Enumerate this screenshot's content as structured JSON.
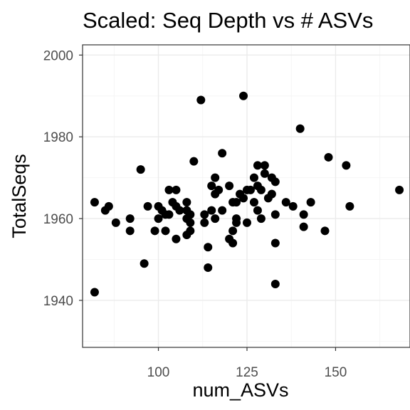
{
  "chart_data": {
    "type": "scatter",
    "title": "Scaled: Seq Depth vs # ASVs",
    "xlabel": "num_ASVs",
    "ylabel": "TotalSeqs",
    "xlim": [
      78.6,
      171.0
    ],
    "ylim": [
      1928.5,
      2002.5
    ],
    "x_ticks": [
      100,
      125,
      150
    ],
    "x_minor_ticks": [
      87.5,
      112.5,
      137.5,
      162.5
    ],
    "y_ticks": [
      1940,
      1960,
      1980,
      2000
    ],
    "y_minor_ticks": [
      1930,
      1950,
      1970,
      1990
    ],
    "grid": true,
    "point_color": "#000000",
    "points": [
      {
        "x": 82,
        "y": 1964
      },
      {
        "x": 82,
        "y": 1942
      },
      {
        "x": 85,
        "y": 1962
      },
      {
        "x": 86,
        "y": 1963
      },
      {
        "x": 88,
        "y": 1959
      },
      {
        "x": 92,
        "y": 1960
      },
      {
        "x": 92,
        "y": 1957
      },
      {
        "x": 95,
        "y": 1972
      },
      {
        "x": 96,
        "y": 1949
      },
      {
        "x": 97,
        "y": 1963
      },
      {
        "x": 99,
        "y": 1957
      },
      {
        "x": 100,
        "y": 1963
      },
      {
        "x": 100,
        "y": 1960
      },
      {
        "x": 101,
        "y": 1962
      },
      {
        "x": 102,
        "y": 1961
      },
      {
        "x": 102,
        "y": 1957
      },
      {
        "x": 103,
        "y": 1967
      },
      {
        "x": 103,
        "y": 1961
      },
      {
        "x": 104,
        "y": 1964
      },
      {
        "x": 105,
        "y": 1967
      },
      {
        "x": 105,
        "y": 1963
      },
      {
        "x": 105,
        "y": 1955
      },
      {
        "x": 106,
        "y": 1962
      },
      {
        "x": 108,
        "y": 1964
      },
      {
        "x": 108,
        "y": 1962
      },
      {
        "x": 108,
        "y": 1960
      },
      {
        "x": 108,
        "y": 1956
      },
      {
        "x": 109,
        "y": 1961
      },
      {
        "x": 109,
        "y": 1959
      },
      {
        "x": 109,
        "y": 1957
      },
      {
        "x": 110,
        "y": 1974
      },
      {
        "x": 112,
        "y": 1989
      },
      {
        "x": 113,
        "y": 1961
      },
      {
        "x": 113,
        "y": 1959
      },
      {
        "x": 114,
        "y": 1953
      },
      {
        "x": 114,
        "y": 1948
      },
      {
        "x": 115,
        "y": 1968
      },
      {
        "x": 115,
        "y": 1962
      },
      {
        "x": 116,
        "y": 1970
      },
      {
        "x": 116,
        "y": 1966
      },
      {
        "x": 116,
        "y": 1960
      },
      {
        "x": 117,
        "y": 1967
      },
      {
        "x": 118,
        "y": 1976
      },
      {
        "x": 118,
        "y": 1962
      },
      {
        "x": 120,
        "y": 1968
      },
      {
        "x": 120,
        "y": 1955
      },
      {
        "x": 121,
        "y": 1964
      },
      {
        "x": 121,
        "y": 1957
      },
      {
        "x": 121,
        "y": 1954
      },
      {
        "x": 122,
        "y": 1964
      },
      {
        "x": 122,
        "y": 1960
      },
      {
        "x": 122,
        "y": 1959
      },
      {
        "x": 123,
        "y": 1966
      },
      {
        "x": 124,
        "y": 1990
      },
      {
        "x": 124,
        "y": 1965
      },
      {
        "x": 125,
        "y": 1967
      },
      {
        "x": 125,
        "y": 1959
      },
      {
        "x": 126,
        "y": 1967
      },
      {
        "x": 127,
        "y": 1970
      },
      {
        "x": 127,
        "y": 1964
      },
      {
        "x": 128,
        "y": 1973
      },
      {
        "x": 128,
        "y": 1968
      },
      {
        "x": 128,
        "y": 1962
      },
      {
        "x": 129,
        "y": 1967
      },
      {
        "x": 129,
        "y": 1960
      },
      {
        "x": 130,
        "y": 1973
      },
      {
        "x": 130,
        "y": 1971
      },
      {
        "x": 131,
        "y": 1965
      },
      {
        "x": 132,
        "y": 1970
      },
      {
        "x": 132,
        "y": 1966
      },
      {
        "x": 133,
        "y": 1969
      },
      {
        "x": 133,
        "y": 1961
      },
      {
        "x": 133,
        "y": 1954
      },
      {
        "x": 133,
        "y": 1944
      },
      {
        "x": 136,
        "y": 1964
      },
      {
        "x": 138,
        "y": 1963
      },
      {
        "x": 140,
        "y": 1982
      },
      {
        "x": 141,
        "y": 1961
      },
      {
        "x": 141,
        "y": 1958
      },
      {
        "x": 143,
        "y": 1964
      },
      {
        "x": 147,
        "y": 1957
      },
      {
        "x": 148,
        "y": 1975
      },
      {
        "x": 153,
        "y": 1973
      },
      {
        "x": 154,
        "y": 1963
      },
      {
        "x": 168,
        "y": 1967
      }
    ]
  }
}
